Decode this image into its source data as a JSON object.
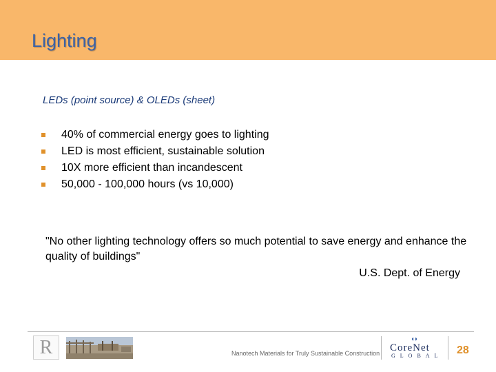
{
  "slide": {
    "title": "Lighting",
    "subtitle": "LEDs (point source) & OLEDs (sheet)",
    "bullets": [
      "40% of commercial energy goes to lighting",
      "LED is most efficient, sustainable solution",
      "10X more efficient than incandescent",
      "50,000 - 100,000 hours (vs 10,000)"
    ],
    "quote": "\"No other lighting technology offers so much potential to save energy and enhance the quality of buildings\"",
    "quote_attribution": "U.S. Dept. of Energy"
  },
  "footer": {
    "caption": "Nanotech Materials for Truly Sustainable Construction",
    "page_number": "28",
    "r_logo_letter": "R",
    "corenet_logo": {
      "word": "CoreNet",
      "sub": "GLOBAL"
    }
  },
  "colors": {
    "title_bar": "#f9b76a",
    "title_text": "#3b62a6",
    "subtitle_text": "#1a3a78",
    "bullet_accent": "#e0912b",
    "page_number": "#e0912b"
  }
}
